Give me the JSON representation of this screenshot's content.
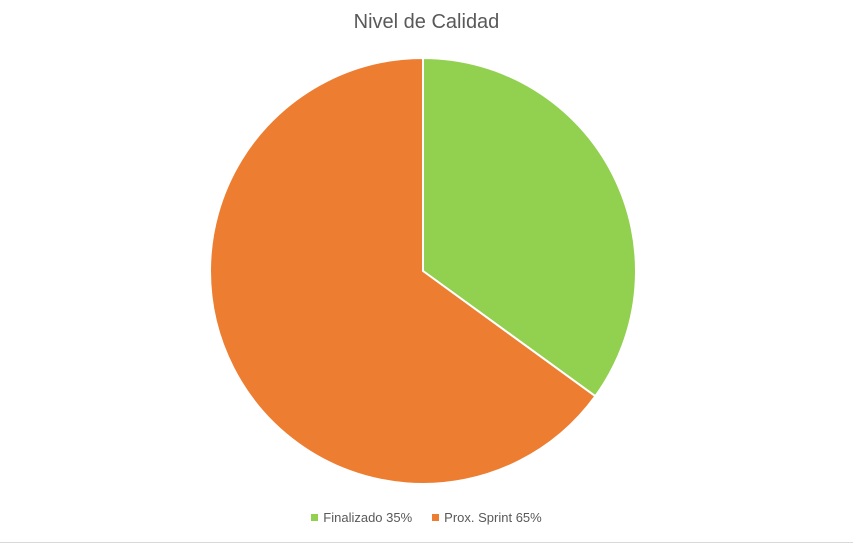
{
  "chart_data": {
    "type": "pie",
    "title": "Nivel de Calidad",
    "categories": [
      "Finalizado 35%",
      "Prox. Sprint 65%"
    ],
    "values": [
      35,
      65
    ],
    "colors": [
      "#92d050",
      "#ed7d31"
    ],
    "legend_position": "bottom"
  }
}
